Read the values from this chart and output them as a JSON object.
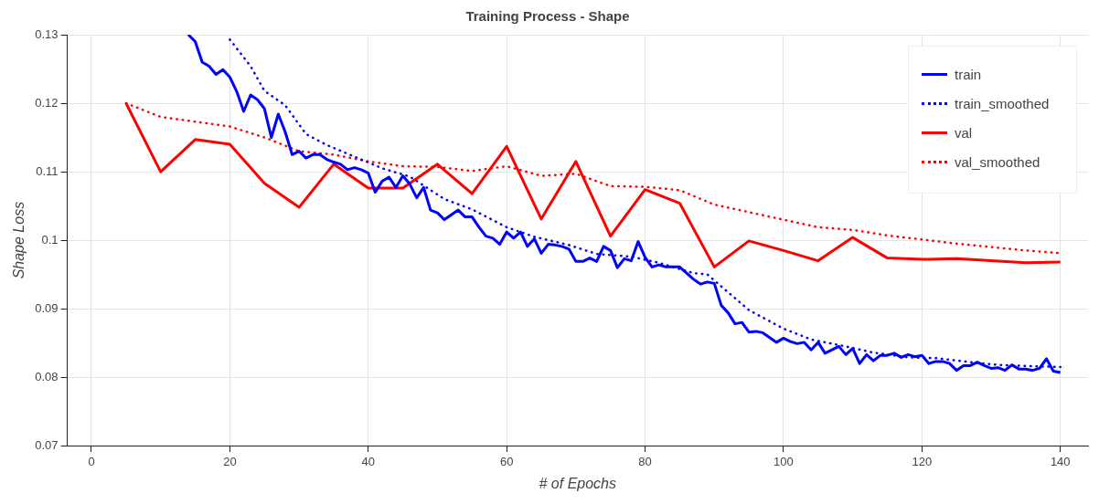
{
  "chart_data": {
    "type": "line",
    "title": "Training Process - Shape",
    "xlabel": "# of Epochs",
    "ylabel": "Shape Loss",
    "xlim": [
      -3.5,
      144
    ],
    "xticks": [
      0,
      20,
      40,
      60,
      80,
      100,
      120,
      140
    ],
    "ylim": [
      0.07,
      0.13
    ],
    "yticks": [
      0.07,
      0.08,
      0.09,
      0.1,
      0.11,
      0.12,
      0.13
    ],
    "grid": true,
    "legend": "top right",
    "series": [
      {
        "name": "train",
        "color": "#0000ff",
        "line_style": "solid",
        "x": [
          14,
          15,
          16,
          17,
          18,
          19,
          20,
          21,
          22,
          23,
          24,
          25,
          26,
          27,
          28,
          29,
          30,
          31,
          32,
          33,
          34,
          35,
          36,
          37,
          38,
          39,
          40,
          41,
          42,
          43,
          44,
          45,
          46,
          47,
          48,
          49,
          50,
          51,
          52,
          53,
          54,
          55,
          56,
          57,
          58,
          59,
          60,
          61,
          62,
          63,
          64,
          65,
          66,
          67,
          68,
          69,
          70,
          71,
          72,
          73,
          74,
          75,
          76,
          77,
          78,
          79,
          80,
          81,
          82,
          83,
          84,
          85,
          86,
          87,
          88,
          89,
          90,
          91,
          92,
          93,
          94,
          95,
          96,
          97,
          98,
          99,
          100,
          101,
          102,
          103,
          104,
          105,
          106,
          107,
          108,
          109,
          110,
          111,
          112,
          113,
          114,
          115,
          116,
          117,
          118,
          119,
          120,
          121,
          122,
          123,
          124,
          125,
          126,
          127,
          128,
          129,
          130,
          131,
          132,
          133,
          134,
          135,
          136,
          137,
          138,
          139,
          140
        ],
        "values": [
          0.13,
          0.129,
          0.126,
          0.1254,
          0.1242,
          0.1249,
          0.1238,
          0.1217,
          0.1188,
          0.1212,
          0.1205,
          0.1192,
          0.115,
          0.1184,
          0.1158,
          0.1125,
          0.113,
          0.112,
          0.1125,
          0.1125,
          0.1118,
          0.1114,
          0.1111,
          0.1103,
          0.1106,
          0.1103,
          0.1098,
          0.107,
          0.1086,
          0.1092,
          0.1077,
          0.1094,
          0.1082,
          0.1062,
          0.1077,
          0.1044,
          0.104,
          0.103,
          0.1037,
          0.1044,
          0.1034,
          0.1034,
          0.1019,
          0.1006,
          0.1003,
          0.0994,
          0.1012,
          0.1003,
          0.1012,
          0.0991,
          0.1002,
          0.0981,
          0.0994,
          0.0993,
          0.0991,
          0.0987,
          0.0969,
          0.0969,
          0.0974,
          0.0969,
          0.0991,
          0.0985,
          0.096,
          0.0973,
          0.097,
          0.0998,
          0.0975,
          0.0961,
          0.0964,
          0.0961,
          0.0961,
          0.0961,
          0.0952,
          0.0943,
          0.0936,
          0.0939,
          0.0937,
          0.0905,
          0.0894,
          0.0878,
          0.088,
          0.0866,
          0.0867,
          0.0865,
          0.0858,
          0.0851,
          0.0857,
          0.0852,
          0.0849,
          0.0851,
          0.084,
          0.0851,
          0.0835,
          0.084,
          0.0845,
          0.0833,
          0.0842,
          0.082,
          0.0833,
          0.0824,
          0.0832,
          0.0832,
          0.0835,
          0.0829,
          0.0833,
          0.083,
          0.0832,
          0.082,
          0.0823,
          0.0823,
          0.082,
          0.081,
          0.0817,
          0.0817,
          0.0822,
          0.0817,
          0.0813,
          0.0814,
          0.081,
          0.0818,
          0.0812,
          0.0812,
          0.081,
          0.0813,
          0.0827,
          0.0809,
          0.0807
        ]
      },
      {
        "name": "train_smoothed",
        "color": "#0000ff",
        "line_style": "dotted",
        "x": [
          20,
          23,
          25,
          28,
          31,
          34,
          38,
          42,
          46,
          51,
          55,
          60,
          64,
          69,
          73,
          78,
          82,
          87,
          89,
          92,
          95,
          100,
          104,
          109,
          113,
          118,
          122,
          127,
          131,
          136,
          140
        ],
        "values": [
          0.1293,
          0.1254,
          0.1218,
          0.1197,
          0.1155,
          0.1139,
          0.1122,
          0.1105,
          0.1093,
          0.106,
          0.1045,
          0.1019,
          0.1005,
          0.0993,
          0.098,
          0.0976,
          0.0967,
          0.0952,
          0.095,
          0.0924,
          0.0898,
          0.0871,
          0.0855,
          0.0845,
          0.0836,
          0.0829,
          0.0828,
          0.0822,
          0.0818,
          0.0816,
          0.0815
        ]
      },
      {
        "name": "val",
        "color": "#ff0000",
        "line_style": "solid",
        "x": [
          5,
          10,
          15,
          20,
          25,
          30,
          35,
          40,
          45,
          50,
          55,
          60,
          65,
          70,
          75,
          80,
          85,
          90,
          95,
          100,
          105,
          110,
          115,
          120,
          125,
          130,
          135,
          140
        ],
        "values": [
          0.12,
          0.11,
          0.1147,
          0.114,
          0.1083,
          0.1048,
          0.1111,
          0.1076,
          0.1076,
          0.1111,
          0.1068,
          0.1137,
          0.1031,
          0.1115,
          0.1006,
          0.1074,
          0.1054,
          0.0961,
          0.0999,
          0.0985,
          0.097,
          0.1004,
          0.0974,
          0.0972,
          0.0973,
          0.097,
          0.0967,
          0.0968
        ]
      },
      {
        "name": "val_smoothed",
        "color": "#ff0000",
        "line_style": "dotted",
        "x": [
          5,
          10,
          15,
          20,
          25,
          30,
          35,
          40,
          45,
          50,
          55,
          60,
          65,
          70,
          75,
          80,
          85,
          90,
          95,
          100,
          105,
          110,
          115,
          120,
          125,
          130,
          135,
          140
        ],
        "values": [
          0.12,
          0.118,
          0.1173,
          0.1166,
          0.115,
          0.113,
          0.1125,
          0.1115,
          0.1108,
          0.1107,
          0.1101,
          0.1108,
          0.1094,
          0.1097,
          0.1079,
          0.1078,
          0.1073,
          0.1052,
          0.1041,
          0.103,
          0.1019,
          0.1015,
          0.1007,
          0.1001,
          0.0995,
          0.099,
          0.0985,
          0.0981
        ]
      }
    ]
  }
}
